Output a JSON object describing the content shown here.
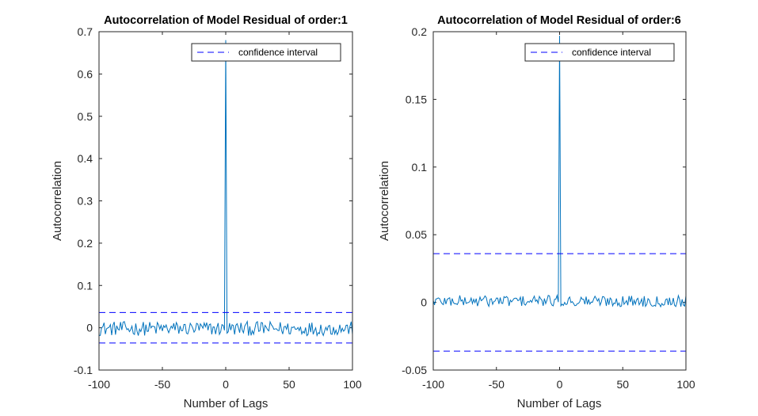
{
  "chart_data": [
    {
      "type": "line",
      "title": "Autocorrelation of Model Residual of order:1",
      "xlabel": "Number of Lags",
      "ylabel": "Autocorrelation",
      "xlim": [
        -100,
        100
      ],
      "ylim": [
        -0.1,
        0.7
      ],
      "xticks": [
        -100,
        -50,
        0,
        50,
        100
      ],
      "xtick_labels": [
        "-100",
        "-50",
        "0",
        "50",
        "100"
      ],
      "yticks": [
        -0.1,
        0,
        0.1,
        0.2,
        0.3,
        0.4,
        0.5,
        0.6,
        0.7
      ],
      "ytick_labels": [
        "-0.1",
        "0",
        "0.1",
        "0.2",
        "0.3",
        "0.4",
        "0.5",
        "0.6",
        "0.7"
      ],
      "grid": false,
      "legend": {
        "position": "top-right",
        "entries": [
          "confidence interval"
        ]
      },
      "confidence_interval": [
        -0.036,
        0.036
      ],
      "peak": {
        "lag": 0,
        "value": 0.68
      },
      "noise_amplitude": 0.012,
      "noise_offset": -0.002,
      "series_color": "#0072BD",
      "ci_color": "#0000FF"
    },
    {
      "type": "line",
      "title": "Autocorrelation of Model Residual of order:6",
      "xlabel": "Number of Lags",
      "ylabel": "Autocorrelation",
      "xlim": [
        -100,
        100
      ],
      "ylim": [
        -0.05,
        0.2
      ],
      "xticks": [
        -100,
        -50,
        0,
        50,
        100
      ],
      "xtick_labels": [
        "-100",
        "-50",
        "0",
        "50",
        "100"
      ],
      "yticks": [
        -0.05,
        0,
        0.05,
        0.1,
        0.15,
        0.2
      ],
      "ytick_labels": [
        "-0.05",
        "0",
        "0.05",
        "0.1",
        "0.15",
        "0.2"
      ],
      "grid": false,
      "legend": {
        "position": "top-right",
        "entries": [
          "confidence interval"
        ]
      },
      "confidence_interval": [
        -0.036,
        0.036
      ],
      "peak": {
        "lag": 0,
        "value": 0.197
      },
      "noise_amplitude": 0.003,
      "noise_offset": 0.001,
      "series_color": "#0072BD",
      "ci_color": "#0000FF"
    }
  ]
}
